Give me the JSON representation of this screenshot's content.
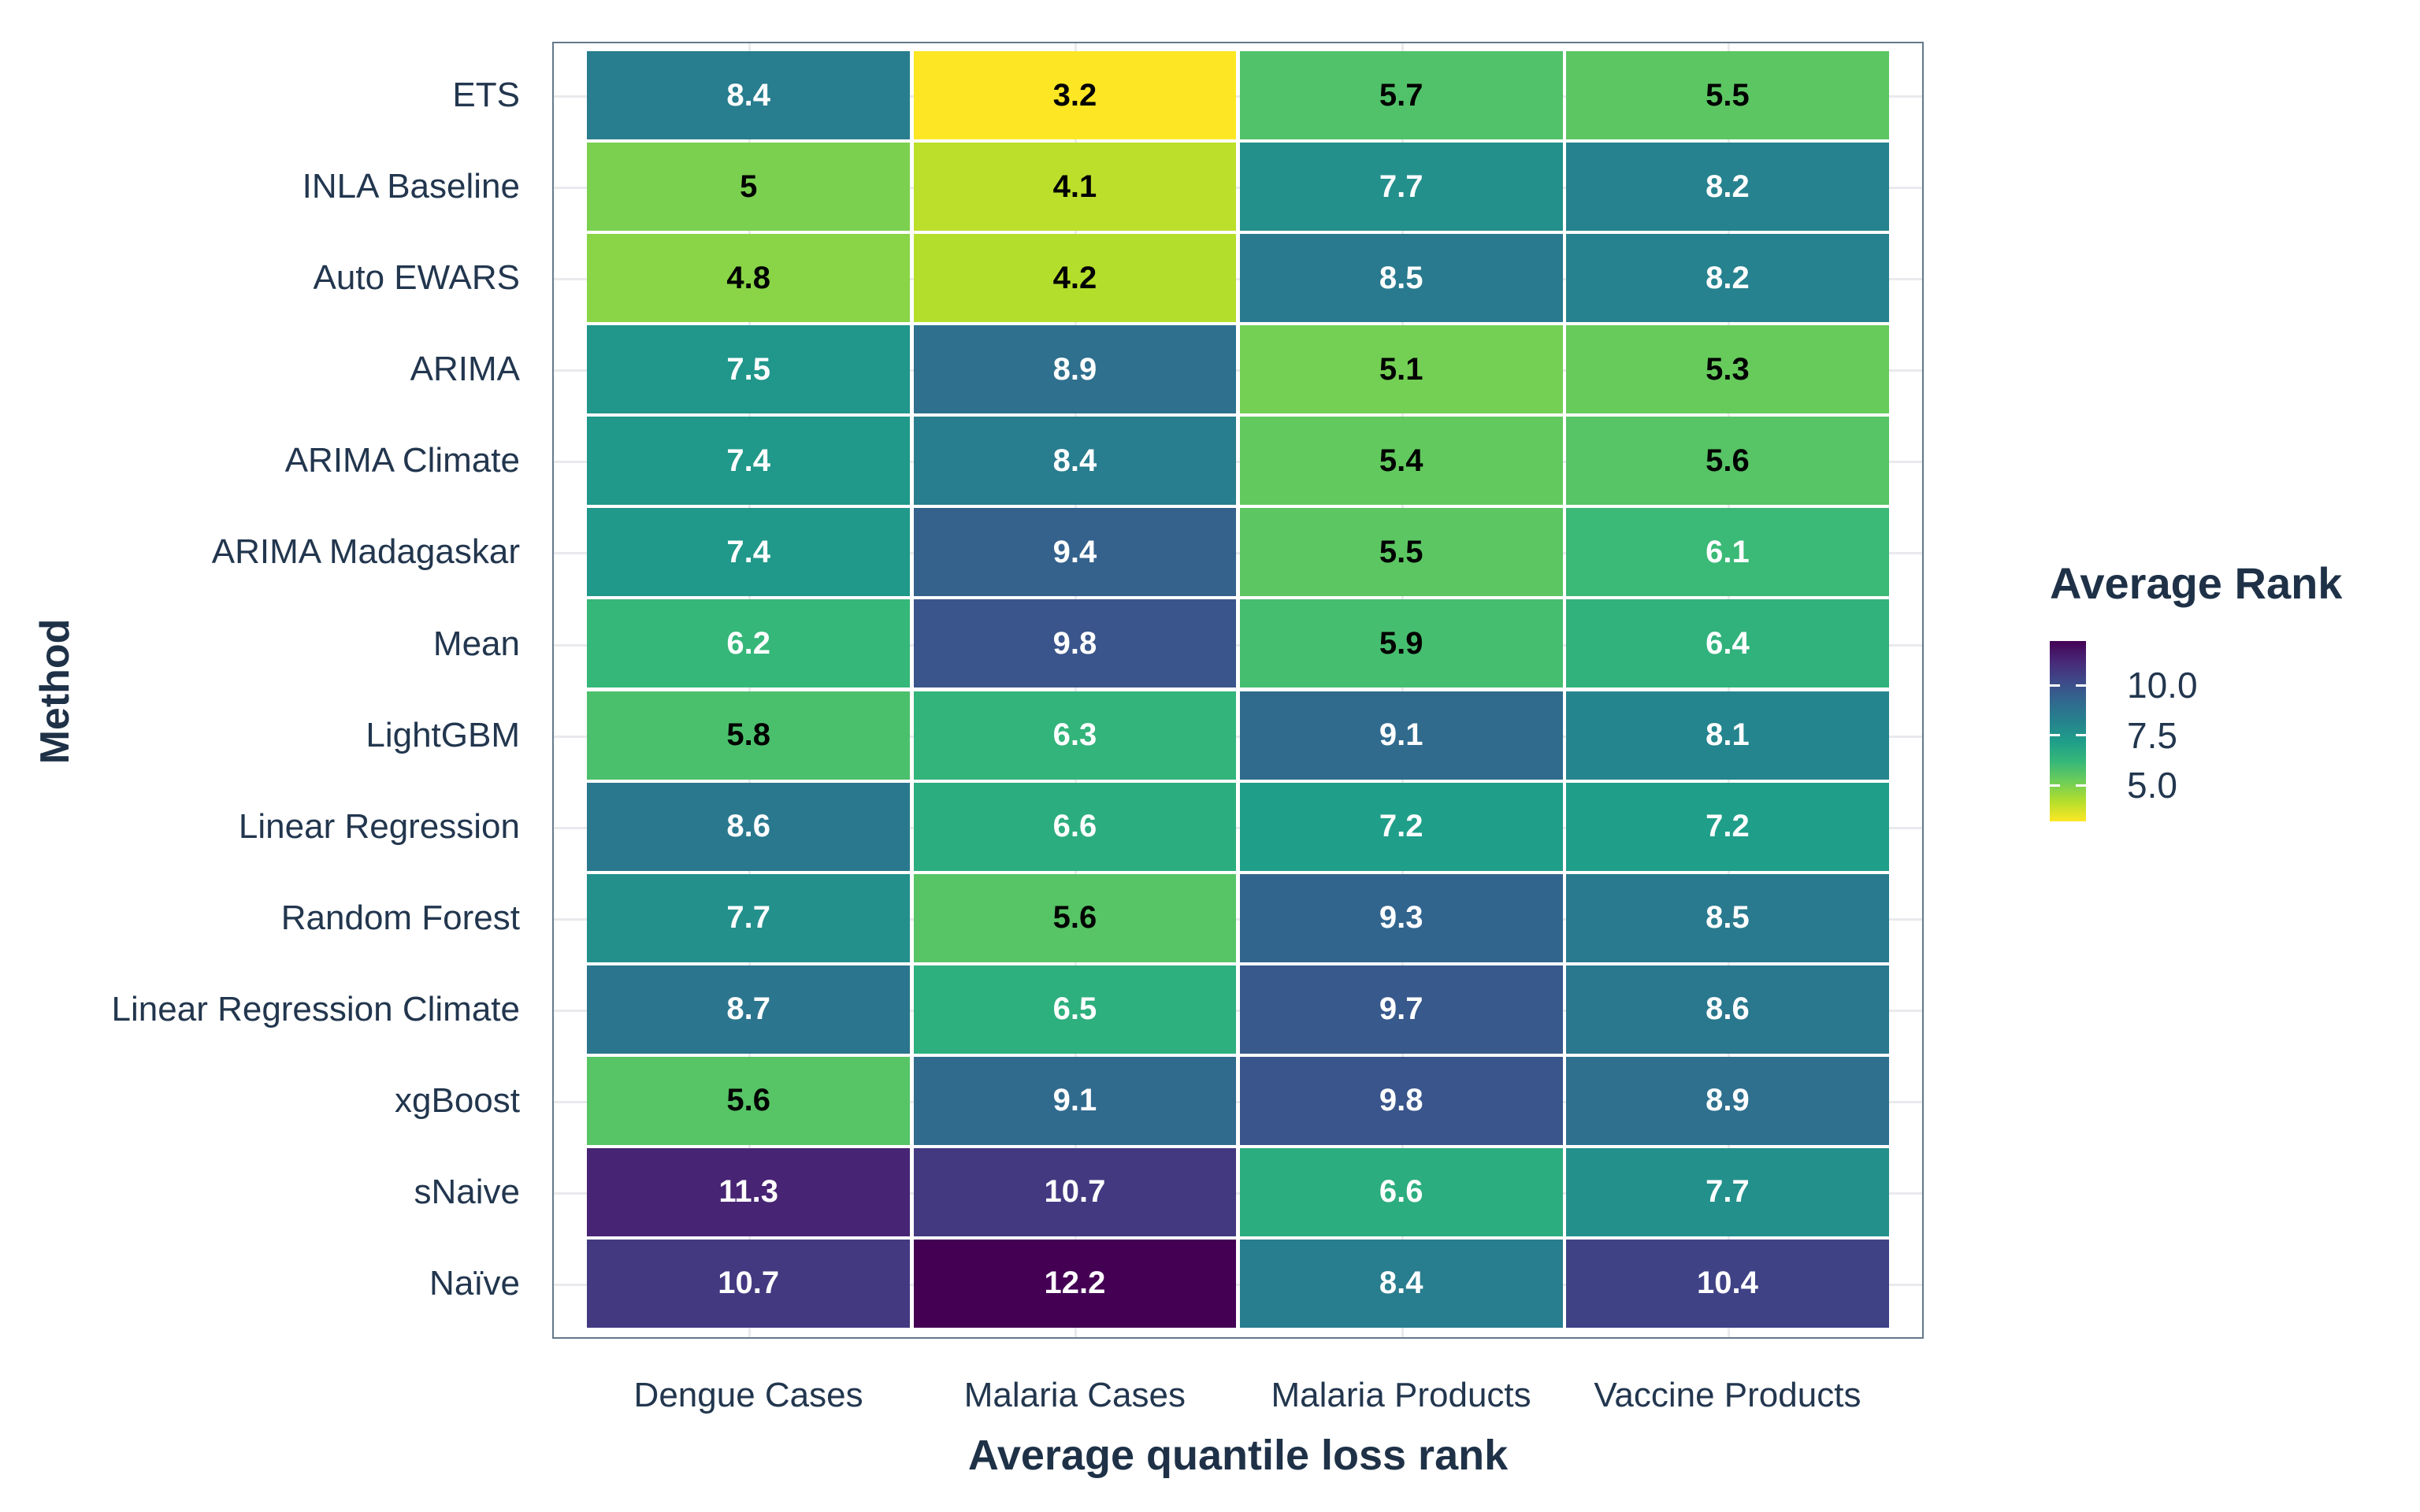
{
  "chart_data": {
    "type": "heatmap",
    "title": "",
    "xlabel": "Average quantile loss rank",
    "ylabel": "Method",
    "x_categories": [
      "Dengue Cases",
      "Malaria Cases",
      "Malaria Products",
      "Vaccine Products"
    ],
    "y_categories": [
      "ETS",
      "INLA Baseline",
      "Auto EWARS",
      "ARIMA",
      "ARIMA Climate",
      "ARIMA Madagaskar",
      "Mean",
      "LightGBM",
      "Linear Regression",
      "Random Forest",
      "Linear Regression Climate",
      "xgBoost",
      "sNaive",
      "Naïve"
    ],
    "values": [
      [
        8.4,
        3.2,
        5.7,
        5.5
      ],
      [
        5,
        4.1,
        7.7,
        8.2
      ],
      [
        4.8,
        4.2,
        8.5,
        8.2
      ],
      [
        7.5,
        8.9,
        5.1,
        5.3
      ],
      [
        7.4,
        8.4,
        5.4,
        5.6
      ],
      [
        7.4,
        9.4,
        5.5,
        6.1
      ],
      [
        6.2,
        9.8,
        5.9,
        6.4
      ],
      [
        5.8,
        6.3,
        9.1,
        8.1
      ],
      [
        8.6,
        6.6,
        7.2,
        7.2
      ],
      [
        7.7,
        5.6,
        9.3,
        8.5
      ],
      [
        8.7,
        6.5,
        9.7,
        8.6
      ],
      [
        5.6,
        9.1,
        9.8,
        8.9
      ],
      [
        11.3,
        10.7,
        6.6,
        7.7
      ],
      [
        10.7,
        12.2,
        8.4,
        10.4
      ]
    ],
    "value_domain": [
      3.2,
      12.2
    ],
    "grid": true,
    "legend": {
      "title": "Average Rank",
      "position": "right",
      "orientation": "vertical",
      "high_values_at_top": true,
      "ticks": [
        "10.0",
        "7.5",
        "5.0"
      ]
    },
    "colormap": {
      "name": "viridis",
      "reversed_by_value": true,
      "stops": [
        "#440154",
        "#482878",
        "#3e4989",
        "#31688e",
        "#26828e",
        "#1f9e89",
        "#35b779",
        "#6dcd59",
        "#b4de2c",
        "#fde725"
      ]
    },
    "cell_label_rule": {
      "dark_text_below_value": 6,
      "dark_text_color": "#000000",
      "light_text_color": "#ffffff"
    }
  },
  "colors": {
    "background": "#ffffff",
    "panel_border": "#64798b",
    "gridline": "#e9eaed",
    "axis_text": "#22364e",
    "title_text": "#1e3147"
  }
}
